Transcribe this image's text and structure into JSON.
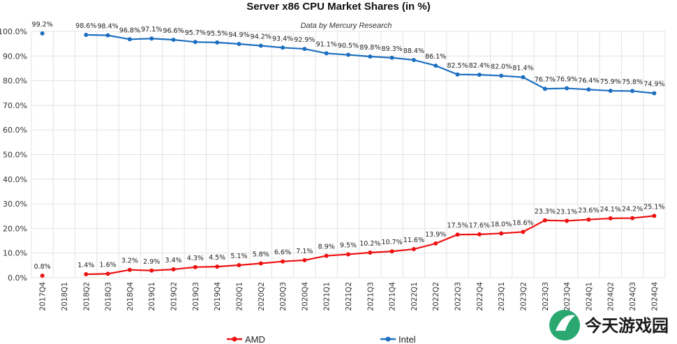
{
  "chart_data": {
    "type": "line",
    "title": "Server x86 CPU Market Shares (in %)",
    "subtitle": "Data by Mercury Research",
    "ylim": [
      0,
      100
    ],
    "yticks": [
      "0.0%",
      "10.0%",
      "20.0%",
      "30.0%",
      "40.0%",
      "50.0%",
      "60.0%",
      "70.0%",
      "80.0%",
      "90.0%",
      "100.0%"
    ],
    "grid": true,
    "legend_position": "bottom",
    "categories": [
      "2017Q4",
      "2018Q1",
      "2018Q2",
      "2018Q3",
      "2018Q4",
      "2019Q1",
      "2019Q2",
      "2019Q3",
      "2019Q4",
      "2020Q1",
      "2020Q2",
      "2020Q3",
      "2020Q4",
      "2021Q1",
      "2021Q2",
      "2021Q3",
      "2021Q4",
      "2022Q1",
      "2022Q2",
      "2022Q3",
      "2022Q4",
      "2023Q1",
      "2023Q2",
      "2023Q3",
      "2023Q4",
      "2024Q1",
      "2024Q2",
      "2024Q3",
      "2024Q4"
    ],
    "series": [
      {
        "name": "AMD",
        "color": "#ee1111",
        "values": [
          0.8,
          null,
          1.4,
          1.6,
          3.2,
          2.9,
          3.4,
          4.3,
          4.5,
          5.1,
          5.8,
          6.6,
          7.1,
          8.9,
          9.5,
          10.2,
          10.7,
          11.6,
          13.9,
          17.5,
          17.6,
          18.0,
          18.6,
          23.3,
          23.1,
          23.6,
          24.1,
          24.2,
          25.1
        ],
        "labels": [
          "0.8%",
          "",
          "1.4%",
          "1.6%",
          "3.2%",
          "2.9%",
          "3.4%",
          "4.3%",
          "4.5%",
          "5.1%",
          "5.8%",
          "6.6%",
          "7.1%",
          "8.9%",
          "9.5%",
          "10.2%",
          "10.7%",
          "11.6%",
          "13.9%",
          "17.5%",
          "17.6%",
          "18.0%",
          "18.6%",
          "23.3%",
          "23.1%",
          "23.6%",
          "24.1%",
          "24.2%",
          "25.1%"
        ]
      },
      {
        "name": "Intel",
        "color": "#1c6ec0",
        "values": [
          99.2,
          null,
          98.6,
          98.4,
          96.8,
          97.1,
          96.6,
          95.7,
          95.5,
          94.9,
          94.2,
          93.4,
          92.9,
          91.1,
          90.5,
          89.8,
          89.3,
          88.4,
          86.1,
          82.5,
          82.4,
          82.0,
          81.4,
          76.7,
          76.9,
          76.4,
          75.9,
          75.8,
          74.9
        ],
        "labels": [
          "99.2%",
          "",
          "98.6%",
          "98.4%",
          "96.8%",
          "97.1%",
          "96.6%",
          "95.7%",
          "95.5%",
          "94.9%",
          "94.2%",
          "93.4%",
          "92.9%",
          "91.1%",
          "90.5%",
          "89.8%",
          "89.3%",
          "88.4%",
          "86.1%",
          "82.5%",
          "82.4%",
          "82.0%",
          "81.4%",
          "76.7%",
          "76.9%",
          "76.4%",
          "75.9%",
          "75.8%",
          "74.9%"
        ]
      }
    ]
  },
  "watermark": {
    "text": "今天游戏园",
    "color": "#2aa870"
  }
}
